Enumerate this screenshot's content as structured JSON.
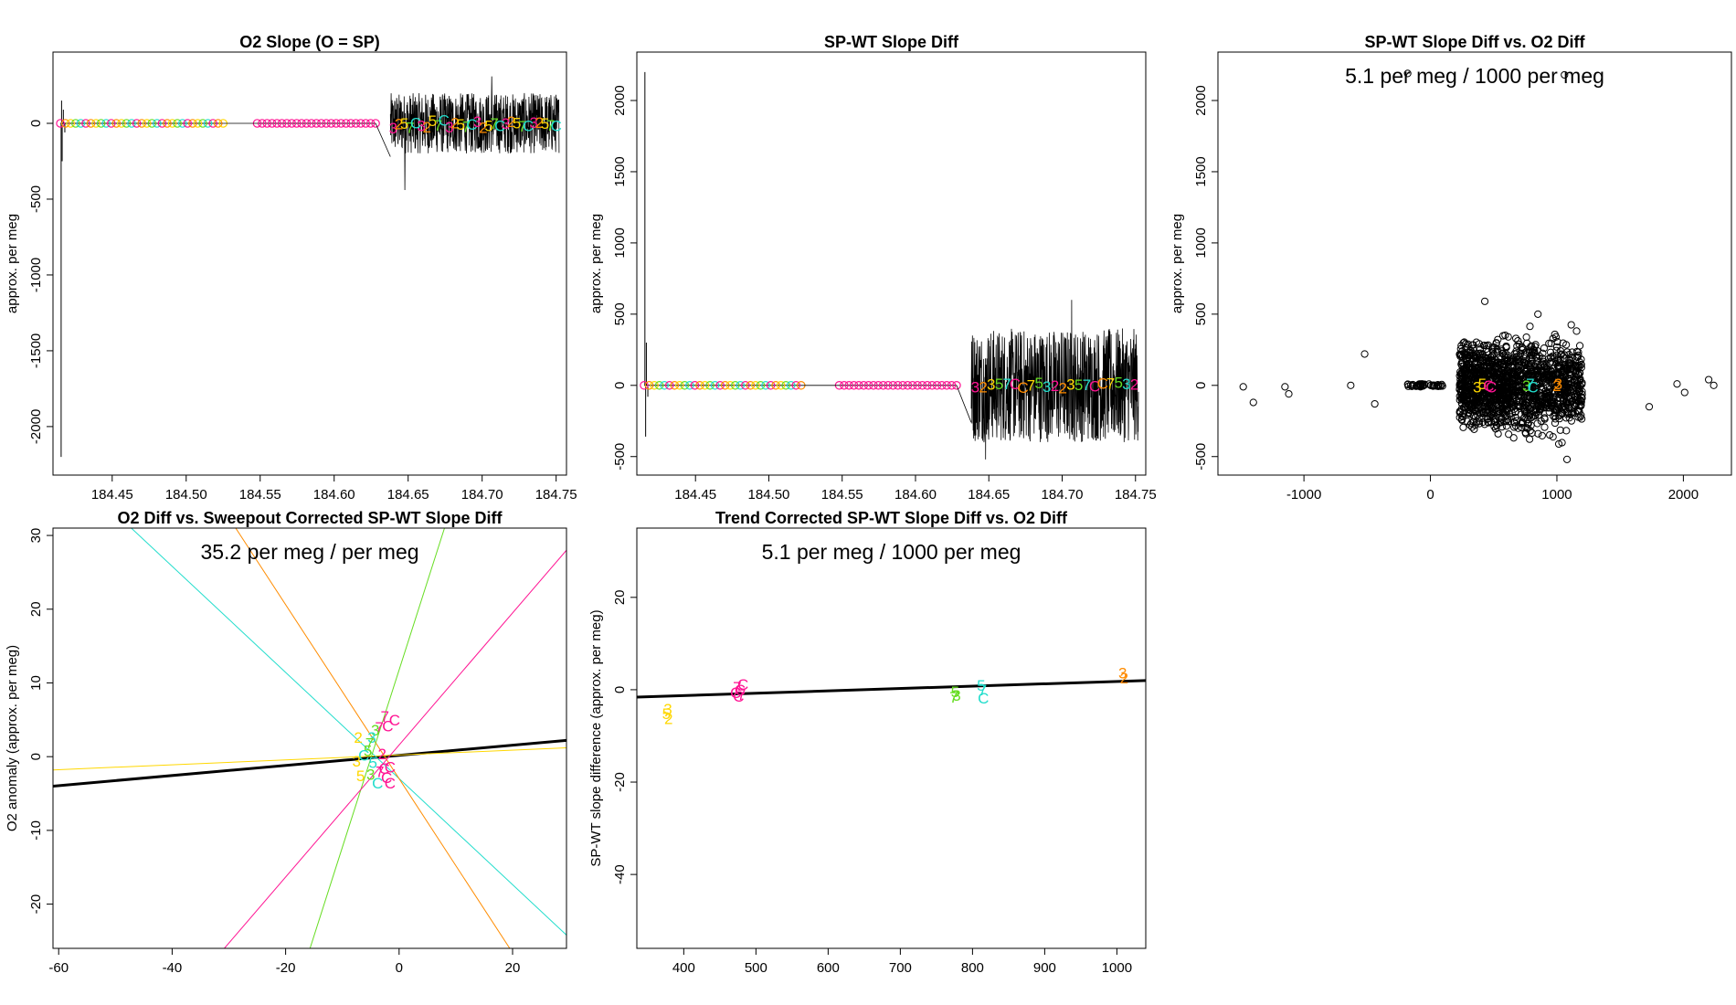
{
  "colors": {
    "axis": "#000000",
    "red": "#ff1493",
    "orange": "#ff8c00",
    "yellow": "#ffd700",
    "green": "#66dd22",
    "cyan": "#22ddcc",
    "fitline": "#000000"
  },
  "chart_data": [
    {
      "id": "p1",
      "type": "line",
      "title": "O2 Slope (O = SP)",
      "xlabel": "",
      "ylabel": "approx. per meg",
      "xlim": [
        184.41,
        184.757
      ],
      "ylim": [
        -2320,
        470
      ],
      "xticks": [
        184.45,
        184.5,
        184.55,
        184.6,
        184.65,
        184.7,
        184.75
      ],
      "xtick_labels": [
        "184.45",
        "184.50",
        "184.55",
        "184.60",
        "184.65",
        "184.70",
        "184.75"
      ],
      "yticks": [
        0,
        -500,
        -1000,
        -1500,
        -2000
      ],
      "ytick_labels": [
        "0",
        "-500",
        "-1000",
        "-1500",
        "-2000"
      ],
      "series": [
        {
          "name": "early segment",
          "x_range": [
            184.415,
            184.525
          ],
          "value": 0,
          "spikes": [
            [
              184.4155,
              -2200
            ],
            [
              184.4158,
              150
            ],
            [
              184.4162,
              -250
            ],
            [
              184.417,
              90
            ],
            [
              184.418,
              -60
            ]
          ]
        },
        {
          "name": "middle segment",
          "x_range": [
            184.548,
            184.628
          ],
          "value": 0
        },
        {
          "name": "noisy block",
          "x_range": [
            184.638,
            184.752
          ],
          "value": 0,
          "band": [
            -200,
            200
          ],
          "peaks": [
            -440,
            310
          ]
        }
      ],
      "marker_labels": [
        "3",
        "2",
        "5",
        "7",
        "C"
      ]
    },
    {
      "id": "p2",
      "type": "line",
      "title": "SP-WT Slope Diff",
      "xlabel": "",
      "ylabel": "approx. per meg",
      "xlim": [
        184.41,
        184.757
      ],
      "ylim": [
        -630,
        2340
      ],
      "xticks": [
        184.45,
        184.5,
        184.55,
        184.6,
        184.65,
        184.7,
        184.75
      ],
      "xtick_labels": [
        "184.45",
        "184.50",
        "184.55",
        "184.60",
        "184.65",
        "184.70",
        "184.75"
      ],
      "yticks": [
        -500,
        0,
        500,
        1000,
        1500,
        2000
      ],
      "ytick_labels": [
        "-500",
        "0",
        "500",
        "1000",
        "1500",
        "2000"
      ],
      "series": [
        {
          "name": "early segment",
          "x_range": [
            184.415,
            184.522
          ],
          "value": 0,
          "spikes": [
            [
              184.4155,
              2200
            ],
            [
              184.416,
              -360
            ],
            [
              184.4165,
              300
            ],
            [
              184.4175,
              -80
            ]
          ]
        },
        {
          "name": "middle segment",
          "x_range": [
            184.548,
            184.628
          ],
          "value": 0
        },
        {
          "name": "noisy block",
          "x_range": [
            184.638,
            184.752
          ],
          "value": 0,
          "band": [
            -400,
            400
          ],
          "peaks": [
            -520,
            600
          ]
        }
      ],
      "marker_labels": [
        "3",
        "2",
        "3",
        "5",
        "7",
        "C",
        "C",
        "7",
        "5",
        "3",
        "2",
        "2",
        "3",
        "5",
        "7",
        "C",
        "C",
        "7",
        "5",
        "3",
        "2"
      ]
    },
    {
      "id": "p3",
      "type": "scatter",
      "title": "SP-WT Slope Diff vs. O2 Diff",
      "annotation": "5.1 per meg / 1000 per meg",
      "xlabel": "",
      "ylabel": "approx. per meg",
      "xlim": [
        -1680,
        2380
      ],
      "ylim": [
        -630,
        2340
      ],
      "xticks": [
        -1000,
        0,
        1000,
        2000
      ],
      "xtick_labels": [
        "-1000",
        "0",
        "1000",
        "2000"
      ],
      "yticks": [
        -500,
        0,
        500,
        1000,
        1500,
        2000
      ],
      "ytick_labels": [
        "-500",
        "0",
        "500",
        "1000",
        "1500",
        "2000"
      ],
      "outliers": [
        [
          -1480,
          -10
        ],
        [
          -1400,
          -120
        ],
        [
          -1150,
          -10
        ],
        [
          -1120,
          -60
        ],
        [
          -630,
          0
        ],
        [
          -520,
          220
        ],
        [
          -440,
          -130
        ],
        [
          -180,
          2190
        ],
        [
          1060,
          2180
        ],
        [
          1730,
          -150
        ],
        [
          1950,
          10
        ],
        [
          2010,
          -50
        ],
        [
          2200,
          40
        ],
        [
          2240,
          0
        ],
        [
          430,
          590
        ],
        [
          850,
          500
        ],
        [
          1080,
          -520
        ]
      ],
      "clusters": [
        {
          "x_range": [
            -180,
            120
          ],
          "y": 0,
          "spread": 20
        },
        {
          "x_range": [
            230,
            620
          ],
          "y_range": [
            -420,
            420
          ]
        },
        {
          "x_range": [
            620,
            1200
          ],
          "y_range": [
            -450,
            450
          ]
        }
      ],
      "labels": [
        {
          "t": "3",
          "x": 370,
          "y": -10,
          "color": "yellow"
        },
        {
          "t": "5",
          "x": 410,
          "y": 10,
          "color": "yellow"
        },
        {
          "t": "C",
          "x": 460,
          "y": 0,
          "color": "red"
        },
        {
          "t": "C",
          "x": 480,
          "y": -10,
          "color": "red"
        },
        {
          "t": "3",
          "x": 760,
          "y": 0,
          "color": "green"
        },
        {
          "t": "7",
          "x": 790,
          "y": 10,
          "color": "cyan"
        },
        {
          "t": "C",
          "x": 810,
          "y": -10,
          "color": "cyan"
        },
        {
          "t": "2",
          "x": 1000,
          "y": 0,
          "color": "orange"
        },
        {
          "t": "3",
          "x": 1010,
          "y": 10,
          "color": "orange"
        }
      ]
    },
    {
      "id": "p4",
      "type": "scatter",
      "title": "O2 Diff vs. Sweepout Corrected SP-WT Slope Diff",
      "annotation": "35.2 per meg / per meg",
      "xlabel": "",
      "ylabel": "O2 anomaly (approx. per meg)",
      "xlim": [
        -61,
        29.5
      ],
      "ylim": [
        -26,
        31
      ],
      "xticks": [
        -60,
        -40,
        -20,
        0,
        20
      ],
      "xtick_labels": [
        "-60",
        "-40",
        "-20",
        "0",
        "20"
      ],
      "yticks": [
        -20,
        -10,
        0,
        10,
        20,
        30
      ],
      "ytick_labels": [
        "-20",
        "-10",
        "0",
        "10",
        "20",
        "30"
      ],
      "fit_lines": [
        {
          "color": "fitline",
          "p1": [
            -61,
            -4.0
          ],
          "p2": [
            29.5,
            2.2
          ],
          "width": 3
        },
        {
          "color": "yellow",
          "p1": [
            -61,
            -1.8
          ],
          "p2": [
            29.5,
            1.2
          ],
          "width": 1
        },
        {
          "color": "cyan",
          "p1": [
            -47.2,
            31
          ],
          "p2": [
            29.5,
            -24.2
          ],
          "width": 1
        },
        {
          "color": "orange",
          "p1": [
            -28.8,
            31
          ],
          "p2": [
            19.5,
            -26
          ],
          "width": 1
        },
        {
          "color": "green",
          "p1": [
            -15.7,
            -26
          ],
          "p2": [
            8.0,
            31
          ],
          "width": 1
        },
        {
          "color": "red",
          "p1": [
            -30.8,
            -26
          ],
          "p2": [
            29.5,
            28.0
          ],
          "width": 1
        }
      ],
      "labels": [
        {
          "t": "7",
          "x": -2.5,
          "y": 5.5,
          "color": "red"
        },
        {
          "t": "C",
          "x": -0.8,
          "y": 5.0,
          "color": "red"
        },
        {
          "t": "C",
          "x": -2.0,
          "y": 4.2,
          "color": "red"
        },
        {
          "t": "7",
          "x": -3.5,
          "y": 4.0,
          "color": "red"
        },
        {
          "t": "3",
          "x": -4.2,
          "y": 3.6,
          "color": "green"
        },
        {
          "t": "3",
          "x": -4.8,
          "y": 2.6,
          "color": "cyan"
        },
        {
          "t": "7",
          "x": -5.2,
          "y": 1.8,
          "color": "green"
        },
        {
          "t": "2",
          "x": -7.2,
          "y": 2.6,
          "color": "yellow"
        },
        {
          "t": "5",
          "x": -5.5,
          "y": 0.8,
          "color": "green"
        },
        {
          "t": "C",
          "x": -6.2,
          "y": 0.2,
          "color": "cyan"
        },
        {
          "t": "2",
          "x": -3.0,
          "y": 0.4,
          "color": "red"
        },
        {
          "t": "3",
          "x": -7.5,
          "y": -0.6,
          "color": "yellow"
        },
        {
          "t": "5",
          "x": -4.6,
          "y": -0.8,
          "color": "cyan"
        },
        {
          "t": "C",
          "x": -2.6,
          "y": -1.6,
          "color": "red"
        },
        {
          "t": "C",
          "x": -1.6,
          "y": -1.4,
          "color": "red"
        },
        {
          "t": "7",
          "x": -3.4,
          "y": -2.0,
          "color": "red"
        },
        {
          "t": "5",
          "x": -6.8,
          "y": -2.6,
          "color": "yellow"
        },
        {
          "t": "3",
          "x": -5.0,
          "y": -2.4,
          "color": "green"
        },
        {
          "t": "C",
          "x": -2.2,
          "y": -2.8,
          "color": "red"
        },
        {
          "t": "C",
          "x": -1.6,
          "y": -3.6,
          "color": "red"
        },
        {
          "t": "C",
          "x": -3.8,
          "y": -3.6,
          "color": "cyan"
        }
      ]
    },
    {
      "id": "p5",
      "type": "scatter",
      "title": "Trend Corrected SP-WT Slope Diff vs. O2 Diff",
      "annotation": "5.1 per meg / 1000 per meg",
      "xlabel": "",
      "ylabel": "SP-WT slope difference (approx. per meg)",
      "xlim": [
        335,
        1040
      ],
      "ylim": [
        -56,
        35
      ],
      "xticks": [
        400,
        500,
        600,
        700,
        800,
        900,
        1000
      ],
      "xtick_labels": [
        "400",
        "500",
        "600",
        "700",
        "800",
        "900",
        "1000"
      ],
      "yticks": [
        -40,
        -20,
        0,
        20
      ],
      "ytick_labels": [
        "-40",
        "-20",
        "0",
        "20"
      ],
      "fit_lines": [
        {
          "color": "fitline",
          "p1": [
            335,
            -1.6
          ],
          "p2": [
            1040,
            2.0
          ],
          "width": 3
        }
      ],
      "labels": [
        {
          "t": "3",
          "x": 378,
          "y": -4.2,
          "color": "yellow"
        },
        {
          "t": "5",
          "x": 376,
          "y": -5.2,
          "color": "yellow"
        },
        {
          "t": "2",
          "x": 379,
          "y": -6.2,
          "color": "yellow"
        },
        {
          "t": "C",
          "x": 482,
          "y": 1.2,
          "color": "red"
        },
        {
          "t": "7",
          "x": 474,
          "y": 0.6,
          "color": "red"
        },
        {
          "t": "C",
          "x": 478,
          "y": 0.0,
          "color": "red"
        },
        {
          "t": "C",
          "x": 472,
          "y": -0.6,
          "color": "red"
        },
        {
          "t": "7",
          "x": 480,
          "y": -1.0,
          "color": "red"
        },
        {
          "t": "C",
          "x": 476,
          "y": -1.4,
          "color": "red"
        },
        {
          "t": "5",
          "x": 776,
          "y": -0.4,
          "color": "green"
        },
        {
          "t": "3",
          "x": 778,
          "y": -1.2,
          "color": "green"
        },
        {
          "t": "7",
          "x": 774,
          "y": -1.6,
          "color": "green"
        },
        {
          "t": "5",
          "x": 812,
          "y": 1.0,
          "color": "cyan"
        },
        {
          "t": "7",
          "x": 814,
          "y": 0.0,
          "color": "cyan"
        },
        {
          "t": "C",
          "x": 815,
          "y": -1.8,
          "color": "cyan"
        },
        {
          "t": "3",
          "x": 1008,
          "y": 3.6,
          "color": "orange"
        },
        {
          "t": "2",
          "x": 1010,
          "y": 2.6,
          "color": "orange"
        }
      ]
    }
  ]
}
